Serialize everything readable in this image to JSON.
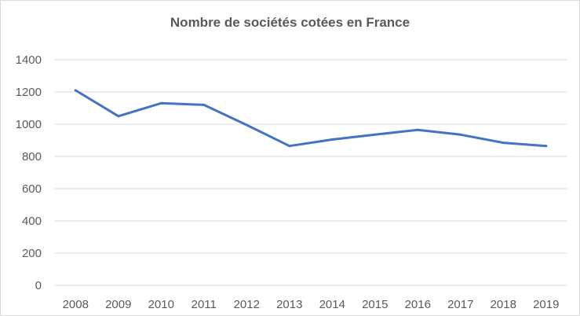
{
  "chart_data": {
    "type": "line",
    "title": "Nombre de sociétés cotées en France",
    "xlabel": "",
    "ylabel": "",
    "categories": [
      "2008",
      "2009",
      "2010",
      "2011",
      "2012",
      "2013",
      "2014",
      "2015",
      "2016",
      "2017",
      "2018",
      "2019"
    ],
    "series": [
      {
        "values": [
          1210,
          1050,
          1130,
          1120,
          995,
          865,
          905,
          935,
          965,
          935,
          885,
          865
        ],
        "color": "#4472c4"
      }
    ],
    "ylim": [
      0,
      1400
    ],
    "yticks": [
      "0",
      "200",
      "400",
      "600",
      "800",
      "1000",
      "1200",
      "1400"
    ],
    "grid": true,
    "legend": "none"
  }
}
